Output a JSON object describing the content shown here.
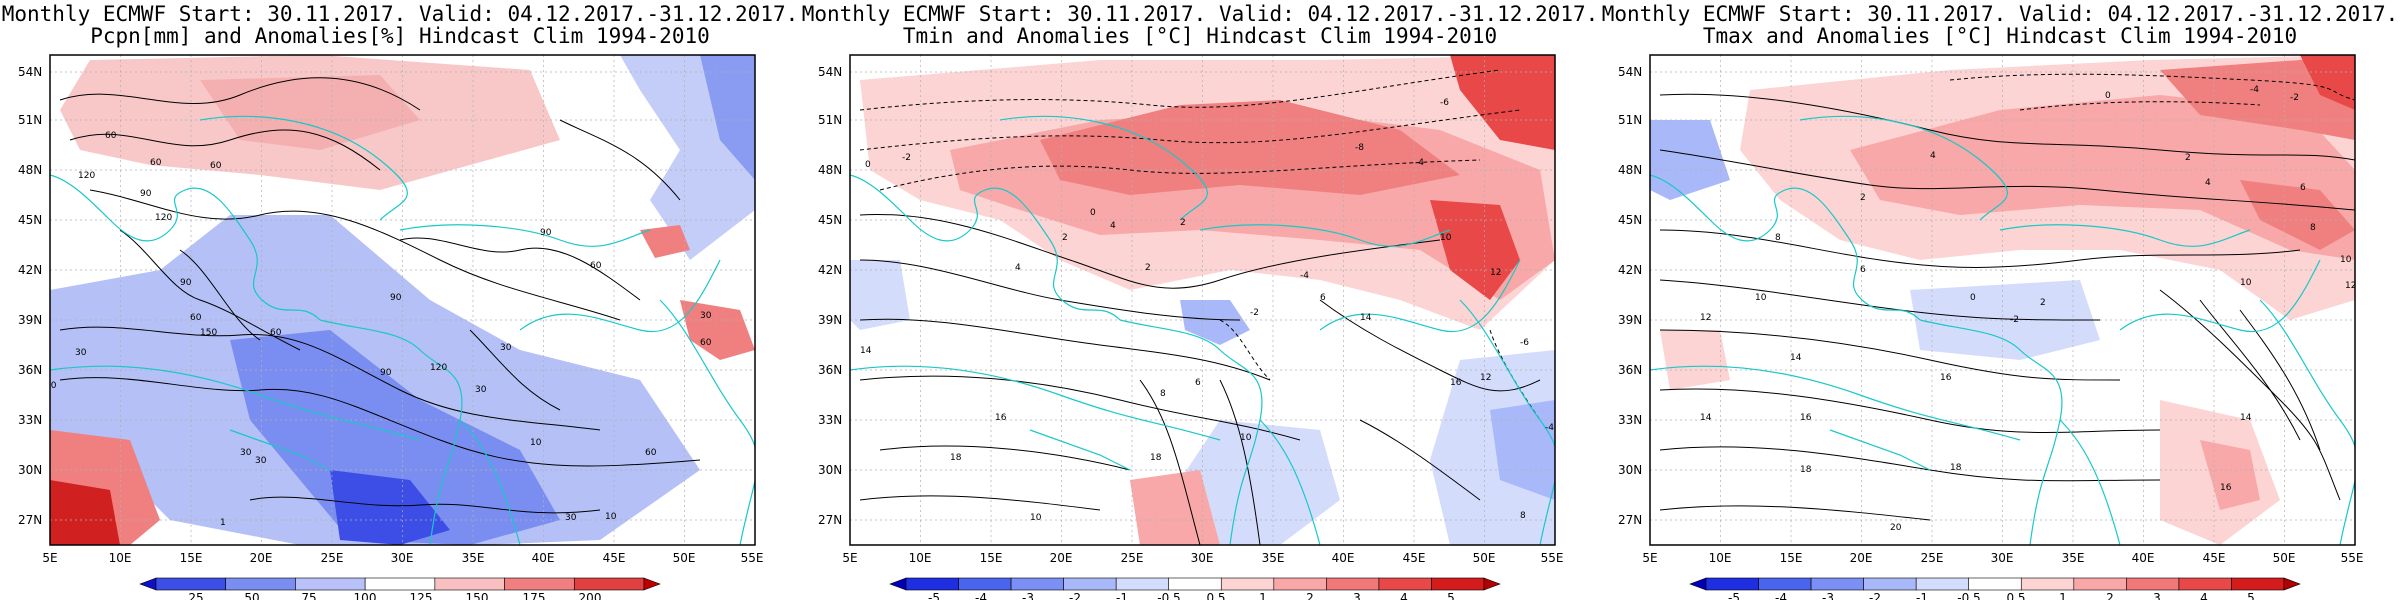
{
  "panels": [
    {
      "id": "pcpn",
      "title_line1": "Monthly ECMWF Start: 30.11.2017. Valid: 04.12.2017.-31.12.2017.",
      "title_line2": "Pcpn[mm] and Anomalies[%] Hindcast Clim 1994-2010",
      "lat_labels": [
        "54N",
        "51N",
        "48N",
        "45N",
        "42N",
        "39N",
        "36N",
        "33N",
        "30N",
        "27N"
      ],
      "lon_labels": [
        "5E",
        "10E",
        "15E",
        "20E",
        "25E",
        "30E",
        "35E",
        "40E",
        "45E",
        "50E",
        "55E"
      ],
      "colorbar": {
        "ticks": [
          "25",
          "50",
          "75",
          "100",
          "125",
          "150",
          "175",
          "200"
        ],
        "colors": [
          "#1010c8",
          "#3c4ee6",
          "#7a8ef2",
          "#b8c2f8",
          "#ffffff",
          "#f8c0c0",
          "#f08080",
          "#e04040",
          "#c00000"
        ]
      },
      "contour_labels": [
        "60",
        "90",
        "120",
        "60",
        "30",
        "10",
        "1",
        "30",
        "60",
        "90",
        "150",
        "120",
        "30",
        "60",
        "90",
        "10",
        "60",
        "30",
        "30",
        "10",
        "60",
        "60",
        "30",
        "90",
        "120",
        "60",
        "90",
        "30"
      ]
    },
    {
      "id": "tmin",
      "title_line1": "Monthly ECMWF Start: 30.11.2017. Valid: 04.12.2017.-31.12.2017.",
      "title_line2": "Tmin and Anomalies [°C] Hindcast Clim 1994-2010",
      "lat_labels": [
        "54N",
        "51N",
        "48N",
        "45N",
        "42N",
        "39N",
        "36N",
        "33N",
        "30N",
        "27N"
      ],
      "lon_labels": [
        "5E",
        "10E",
        "15E",
        "20E",
        "25E",
        "30E",
        "35E",
        "40E",
        "45E",
        "50E",
        "55E"
      ],
      "colorbar": {
        "ticks": [
          "-5",
          "-4",
          "-3",
          "-2",
          "-1",
          "-0.5",
          "0.5",
          "1",
          "2",
          "3",
          "4",
          "5"
        ],
        "colors": [
          "#0000b4",
          "#1e2ee0",
          "#4a64ee",
          "#7a90f4",
          "#a8b8f8",
          "#d4dcfc",
          "#ffffff",
          "#fcd4d4",
          "#f8a8a8",
          "#f07878",
          "#e84848",
          "#d41c1c",
          "#b40000"
        ]
      },
      "contour_labels": [
        "-6",
        "-8",
        "-4",
        "-2",
        "0",
        "2",
        "4",
        "6",
        "8",
        "10",
        "12",
        "14",
        "16",
        "18",
        "10",
        "8",
        "6",
        "-2",
        "-4",
        "2",
        "4",
        "10",
        "12",
        "14",
        "16",
        "18",
        "-6",
        "-4",
        "0",
        "2"
      ]
    },
    {
      "id": "tmax",
      "title_line1": "Monthly ECMWF Start: 30.11.2017. Valid: 04.12.2017.-31.12.2017.",
      "title_line2": "Tmax and Anomalies [°C] Hindcast Clim 1994-2010",
      "lat_labels": [
        "54N",
        "51N",
        "48N",
        "45N",
        "42N",
        "39N",
        "36N",
        "33N",
        "30N",
        "27N"
      ],
      "lon_labels": [
        "5E",
        "10E",
        "15E",
        "20E",
        "25E",
        "30E",
        "35E",
        "40E",
        "45E",
        "50E",
        "55E"
      ],
      "colorbar": {
        "ticks": [
          "-5",
          "-4",
          "-3",
          "-2",
          "-1",
          "-0.5",
          "0.5",
          "1",
          "2",
          "3",
          "4",
          "5"
        ],
        "colors": [
          "#0000b4",
          "#1e2ee0",
          "#4a64ee",
          "#7a90f4",
          "#a8b8f8",
          "#d4dcfc",
          "#ffffff",
          "#fcd4d4",
          "#f8a8a8",
          "#f07878",
          "#e84848",
          "#d41c1c",
          "#b40000"
        ]
      },
      "contour_labels": [
        "-4",
        "-2",
        "0",
        "2",
        "4",
        "6",
        "8",
        "10",
        "12",
        "14",
        "16",
        "18",
        "20",
        "4",
        "2",
        "6",
        "8",
        "10",
        "12",
        "14",
        "16",
        "18",
        "-2",
        "0",
        "2",
        "10",
        "14",
        "16"
      ]
    }
  ],
  "colors": {
    "coastline": "#19c8c8",
    "contour": "#000000",
    "grid": "#b0b0b0"
  }
}
